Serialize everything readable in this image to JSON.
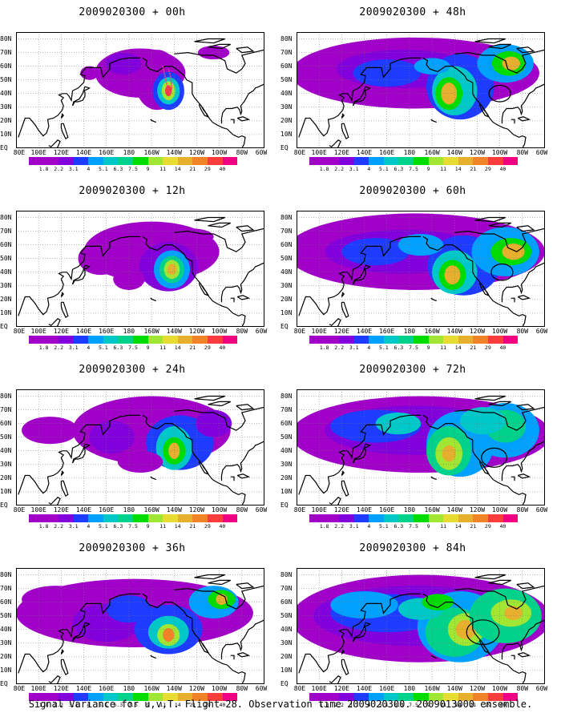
{
  "panels": [
    {
      "id": "p00",
      "title": "2009020300 + 00h",
      "col": 0,
      "row": 0
    },
    {
      "id": "p48",
      "title": "2009020300 + 48h",
      "col": 1,
      "row": 0
    },
    {
      "id": "p12",
      "title": "2009020300 + 12h",
      "col": 0,
      "row": 1
    },
    {
      "id": "p60",
      "title": "2009020300 + 60h",
      "col": 1,
      "row": 1
    },
    {
      "id": "p24",
      "title": "2009020300 + 24h",
      "col": 0,
      "row": 2
    },
    {
      "id": "p72",
      "title": "2009020300 + 72h",
      "col": 1,
      "row": 2
    },
    {
      "id": "p36",
      "title": "2009020300 + 36h",
      "col": 0,
      "row": 3
    },
    {
      "id": "p84",
      "title": "2009020300 + 84h",
      "col": 1,
      "row": 3
    }
  ],
  "latitude_labels": [
    "80N",
    "70N",
    "60N",
    "50N",
    "40N",
    "30N",
    "20N",
    "10N",
    "EQ"
  ],
  "longitude_labels": [
    "80E",
    "100E",
    "120E",
    "140E",
    "160E",
    "180",
    "160W",
    "140W",
    "120W",
    "100W",
    "80W",
    "60W"
  ],
  "colorbar": {
    "labels": [
      "1.8",
      "2.2",
      "3.1",
      "4",
      "5.1",
      "6.3",
      "7.5",
      "9",
      "11",
      "14",
      "21",
      "29",
      "40"
    ],
    "colors": [
      "#a000c8",
      "#8200dc",
      "#1e3cff",
      "#00a0ff",
      "#00c8c8",
      "#00d28c",
      "#00dc00",
      "#a0e632",
      "#e6dc32",
      "#e6af2d",
      "#f08228",
      "#fa3c3c",
      "#f00082"
    ]
  },
  "caption": "Signal Variance for u,v,T. Flight 28. Observation time 2009020300. 2009013000 ensemble."
}
